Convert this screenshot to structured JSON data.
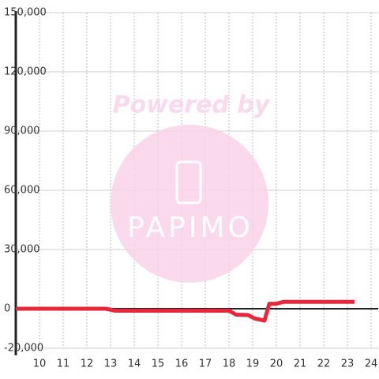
{
  "chart_data": {
    "type": "line",
    "watermark": [
      "Powered by",
      "PAPIMO"
    ],
    "series": [
      {
        "color": "#e8273a",
        "x": [
          9,
          12.8,
          13.2,
          18,
          18.3,
          18.8,
          19.1,
          19.5,
          19.7,
          20,
          20.3,
          23.3
        ],
        "values": [
          0,
          0,
          -1000,
          -1000,
          -3000,
          -3200,
          -5000,
          -6000,
          2500,
          2500,
          3500,
          3500
        ]
      }
    ],
    "xlim": [
      9,
      24.3
    ],
    "xticks": [
      10,
      11,
      12,
      13,
      14,
      15,
      16,
      17,
      18,
      19,
      20,
      21,
      22,
      23,
      24
    ],
    "ylim": [
      -20000,
      150000
    ],
    "yticks": [
      {
        "value": -20000,
        "label": "-20,000"
      },
      0,
      {
        "value": 30000,
        "label": "30,000"
      },
      {
        "value": 60000,
        "label": "60,000"
      },
      {
        "value": 90000,
        "label": "90,000"
      },
      {
        "value": 120000,
        "label": "120,000"
      },
      {
        "value": 150000,
        "label": "150,000"
      }
    ],
    "grid": true
  }
}
